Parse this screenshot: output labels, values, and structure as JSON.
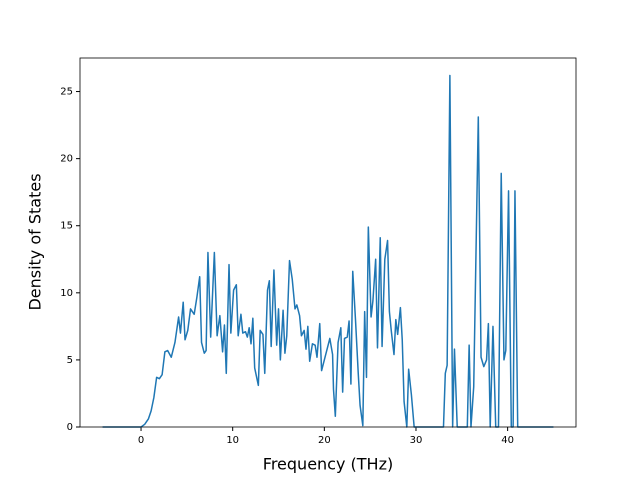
{
  "chart_data": {
    "type": "line",
    "xlabel": "Frequency (THz)",
    "ylabel": "Density of States",
    "x": [
      -4.2,
      0,
      0.4,
      0.8,
      1.1,
      1.4,
      1.7,
      2.0,
      2.3,
      2.6,
      2.9,
      3.3,
      3.7,
      4.1,
      4.3,
      4.6,
      4.8,
      5.1,
      5.4,
      5.8,
      6.1,
      6.4,
      6.6,
      6.9,
      7.1,
      7.3,
      7.6,
      8.0,
      8.3,
      8.6,
      8.9,
      9.1,
      9.3,
      9.6,
      9.8,
      10.1,
      10.4,
      10.6,
      10.9,
      11.1,
      11.4,
      11.6,
      11.8,
      12.0,
      12.2,
      12.4,
      12.8,
      13.0,
      13.3,
      13.5,
      13.8,
      14.0,
      14.2,
      14.5,
      14.8,
      15.0,
      15.2,
      15.5,
      15.7,
      15.9,
      16.2,
      16.5,
      16.8,
      17.0,
      17.3,
      17.5,
      17.8,
      18.0,
      18.2,
      18.4,
      18.7,
      19.0,
      19.2,
      19.5,
      19.7,
      20.0,
      20.3,
      20.6,
      20.9,
      21.0,
      21.2,
      21.5,
      21.8,
      22.0,
      22.2,
      22.5,
      22.7,
      22.9,
      23.1,
      23.4,
      23.7,
      23.9,
      24.2,
      24.4,
      24.6,
      24.8,
      25.1,
      25.3,
      25.6,
      25.8,
      26.1,
      26.3,
      26.6,
      26.9,
      27.1,
      27.3,
      27.6,
      27.8,
      28.0,
      28.3,
      28.5,
      28.7,
      29.0,
      29.2,
      29.5,
      29.8,
      33.0,
      33.2,
      33.4,
      33.7,
      34.0,
      34.2,
      34.5,
      35.6,
      35.8,
      36.0,
      36.3,
      36.8,
      37.1,
      37.4,
      37.7,
      37.9,
      38.1,
      38.4,
      38.7,
      39.0,
      39.3,
      39.6,
      39.8,
      40.1,
      40.4,
      40.6,
      40.8,
      41.1,
      45
    ],
    "series": [
      {
        "color": "#1f77b4",
        "values": [
          0,
          0,
          0.2,
          0.6,
          1.2,
          2.2,
          3.7,
          3.6,
          3.9,
          5.6,
          5.7,
          5.2,
          6.3,
          8.2,
          7.0,
          9.3,
          6.5,
          7.2,
          8.8,
          8.4,
          9.7,
          11.2,
          6.3,
          5.5,
          5.7,
          13.0,
          6.7,
          13.0,
          6.8,
          8.3,
          5.6,
          7.6,
          4.0,
          12.1,
          7.0,
          10.2,
          10.6,
          6.8,
          8.4,
          7.0,
          7.1,
          6.7,
          7.4,
          6.2,
          8.1,
          4.4,
          3.1,
          7.2,
          6.9,
          4.0,
          10.2,
          10.9,
          6.0,
          11.7,
          6.1,
          8.8,
          5.0,
          8.7,
          5.5,
          6.8,
          12.4,
          11.0,
          8.8,
          9.1,
          8.3,
          6.8,
          7.2,
          5.8,
          7.5,
          4.9,
          6.2,
          6.1,
          5.2,
          7.7,
          4.2,
          5.0,
          5.8,
          6.6,
          5.4,
          2.8,
          0.8,
          6.3,
          7.4,
          2.6,
          6.6,
          6.7,
          7.9,
          3.2,
          11.6,
          8.0,
          4.0,
          1.6,
          0.1,
          8.6,
          3.7,
          14.9,
          8.2,
          9.4,
          12.5,
          5.9,
          14.1,
          6.0,
          12.5,
          13.9,
          8.6,
          7.2,
          5.4,
          8.0,
          6.9,
          8.9,
          6.5,
          1.9,
          0,
          4.3,
          2.4,
          0,
          0,
          4.0,
          4.6,
          26.2,
          0,
          5.8,
          0,
          0,
          6.1,
          0,
          3.0,
          23.1,
          5.2,
          4.5,
          5.0,
          7.7,
          0,
          7.5,
          0,
          0,
          18.9,
          5.0,
          5.7,
          17.6,
          0,
          0,
          17.6,
          0,
          0
        ]
      }
    ],
    "xlim": [
      -6.66,
      47.46
    ],
    "ylim": [
      0,
      27.5
    ],
    "xticks": [
      0,
      10,
      20,
      30,
      40
    ],
    "yticks": [
      0,
      5,
      10,
      15,
      20,
      25
    ]
  }
}
